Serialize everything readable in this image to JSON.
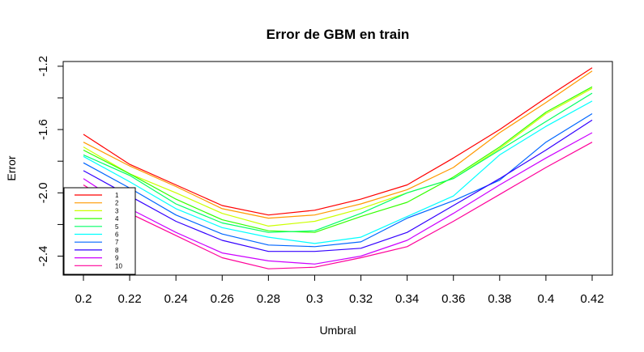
{
  "chart_data": {
    "type": "line",
    "title": "Error de GBM en train",
    "xlabel": "Umbral",
    "ylabel": "Error",
    "x": [
      0.2,
      0.22,
      0.24,
      0.26,
      0.28,
      0.3,
      0.32,
      0.34,
      0.36,
      0.38,
      0.4,
      0.42
    ],
    "x_tick_labels": [
      "0.2",
      "0.22",
      "0.24",
      "0.26",
      "0.28",
      "0.3",
      "0.32",
      "0.34",
      "0.36",
      "0.38",
      "0.4",
      "0.42"
    ],
    "y_ticks": [
      -1.2,
      -1.4,
      -1.6,
      -1.8,
      -2.0,
      -2.2,
      -2.4
    ],
    "y_tick_labels": [
      "-1.2",
      "",
      "-1.6",
      "",
      "-2.0",
      "",
      "-2.4"
    ],
    "xlim": [
      0.2,
      0.42
    ],
    "ylim": [
      -2.52,
      -1.17
    ],
    "grid": false,
    "legend_position": "bottom-left",
    "series": [
      {
        "name": "1",
        "color": "#FF0000",
        "values": [
          -1.63,
          -1.82,
          -1.95,
          -2.08,
          -2.14,
          -2.11,
          -2.04,
          -1.95,
          -1.78,
          -1.6,
          -1.4,
          -1.21
        ]
      },
      {
        "name": "2",
        "color": "#FF9900",
        "values": [
          -1.68,
          -1.83,
          -1.96,
          -2.1,
          -2.16,
          -2.14,
          -2.07,
          -1.98,
          -1.84,
          -1.62,
          -1.43,
          -1.23
        ]
      },
      {
        "name": "3",
        "color": "#CCFF00",
        "values": [
          -1.71,
          -1.88,
          -2.0,
          -2.13,
          -2.21,
          -2.18,
          -2.1,
          -2.0,
          -1.91,
          -1.72,
          -1.5,
          -1.34
        ]
      },
      {
        "name": "4",
        "color": "#33FF00",
        "values": [
          -1.73,
          -1.88,
          -2.04,
          -2.17,
          -2.24,
          -2.25,
          -2.15,
          -2.06,
          -1.9,
          -1.71,
          -1.49,
          -1.33
        ]
      },
      {
        "name": "5",
        "color": "#00FF66",
        "values": [
          -1.76,
          -1.89,
          -2.07,
          -2.19,
          -2.25,
          -2.24,
          -2.13,
          -2.0,
          -1.91,
          -1.73,
          -1.55,
          -1.37
        ]
      },
      {
        "name": "6",
        "color": "#00FFFF",
        "values": [
          -1.77,
          -1.93,
          -2.1,
          -2.22,
          -2.28,
          -2.32,
          -2.28,
          -2.15,
          -2.02,
          -1.76,
          -1.58,
          -1.42
        ]
      },
      {
        "name": "7",
        "color": "#0066FF",
        "values": [
          -1.81,
          -1.97,
          -2.14,
          -2.26,
          -2.33,
          -2.34,
          -2.31,
          -2.16,
          -2.05,
          -1.92,
          -1.68,
          -1.5
        ]
      },
      {
        "name": "8",
        "color": "#3300FF",
        "values": [
          -1.86,
          -2.02,
          -2.18,
          -2.3,
          -2.37,
          -2.37,
          -2.35,
          -2.25,
          -2.08,
          -1.91,
          -1.73,
          -1.54
        ]
      },
      {
        "name": "9",
        "color": "#CC00FF",
        "values": [
          -1.91,
          -2.1,
          -2.25,
          -2.38,
          -2.43,
          -2.45,
          -2.4,
          -2.3,
          -2.13,
          -1.95,
          -1.78,
          -1.62
        ]
      },
      {
        "name": "10",
        "color": "#FF0099",
        "values": [
          -1.95,
          -2.13,
          -2.27,
          -2.41,
          -2.48,
          -2.47,
          -2.41,
          -2.34,
          -2.18,
          -2.01,
          -1.84,
          -1.68
        ]
      }
    ]
  }
}
